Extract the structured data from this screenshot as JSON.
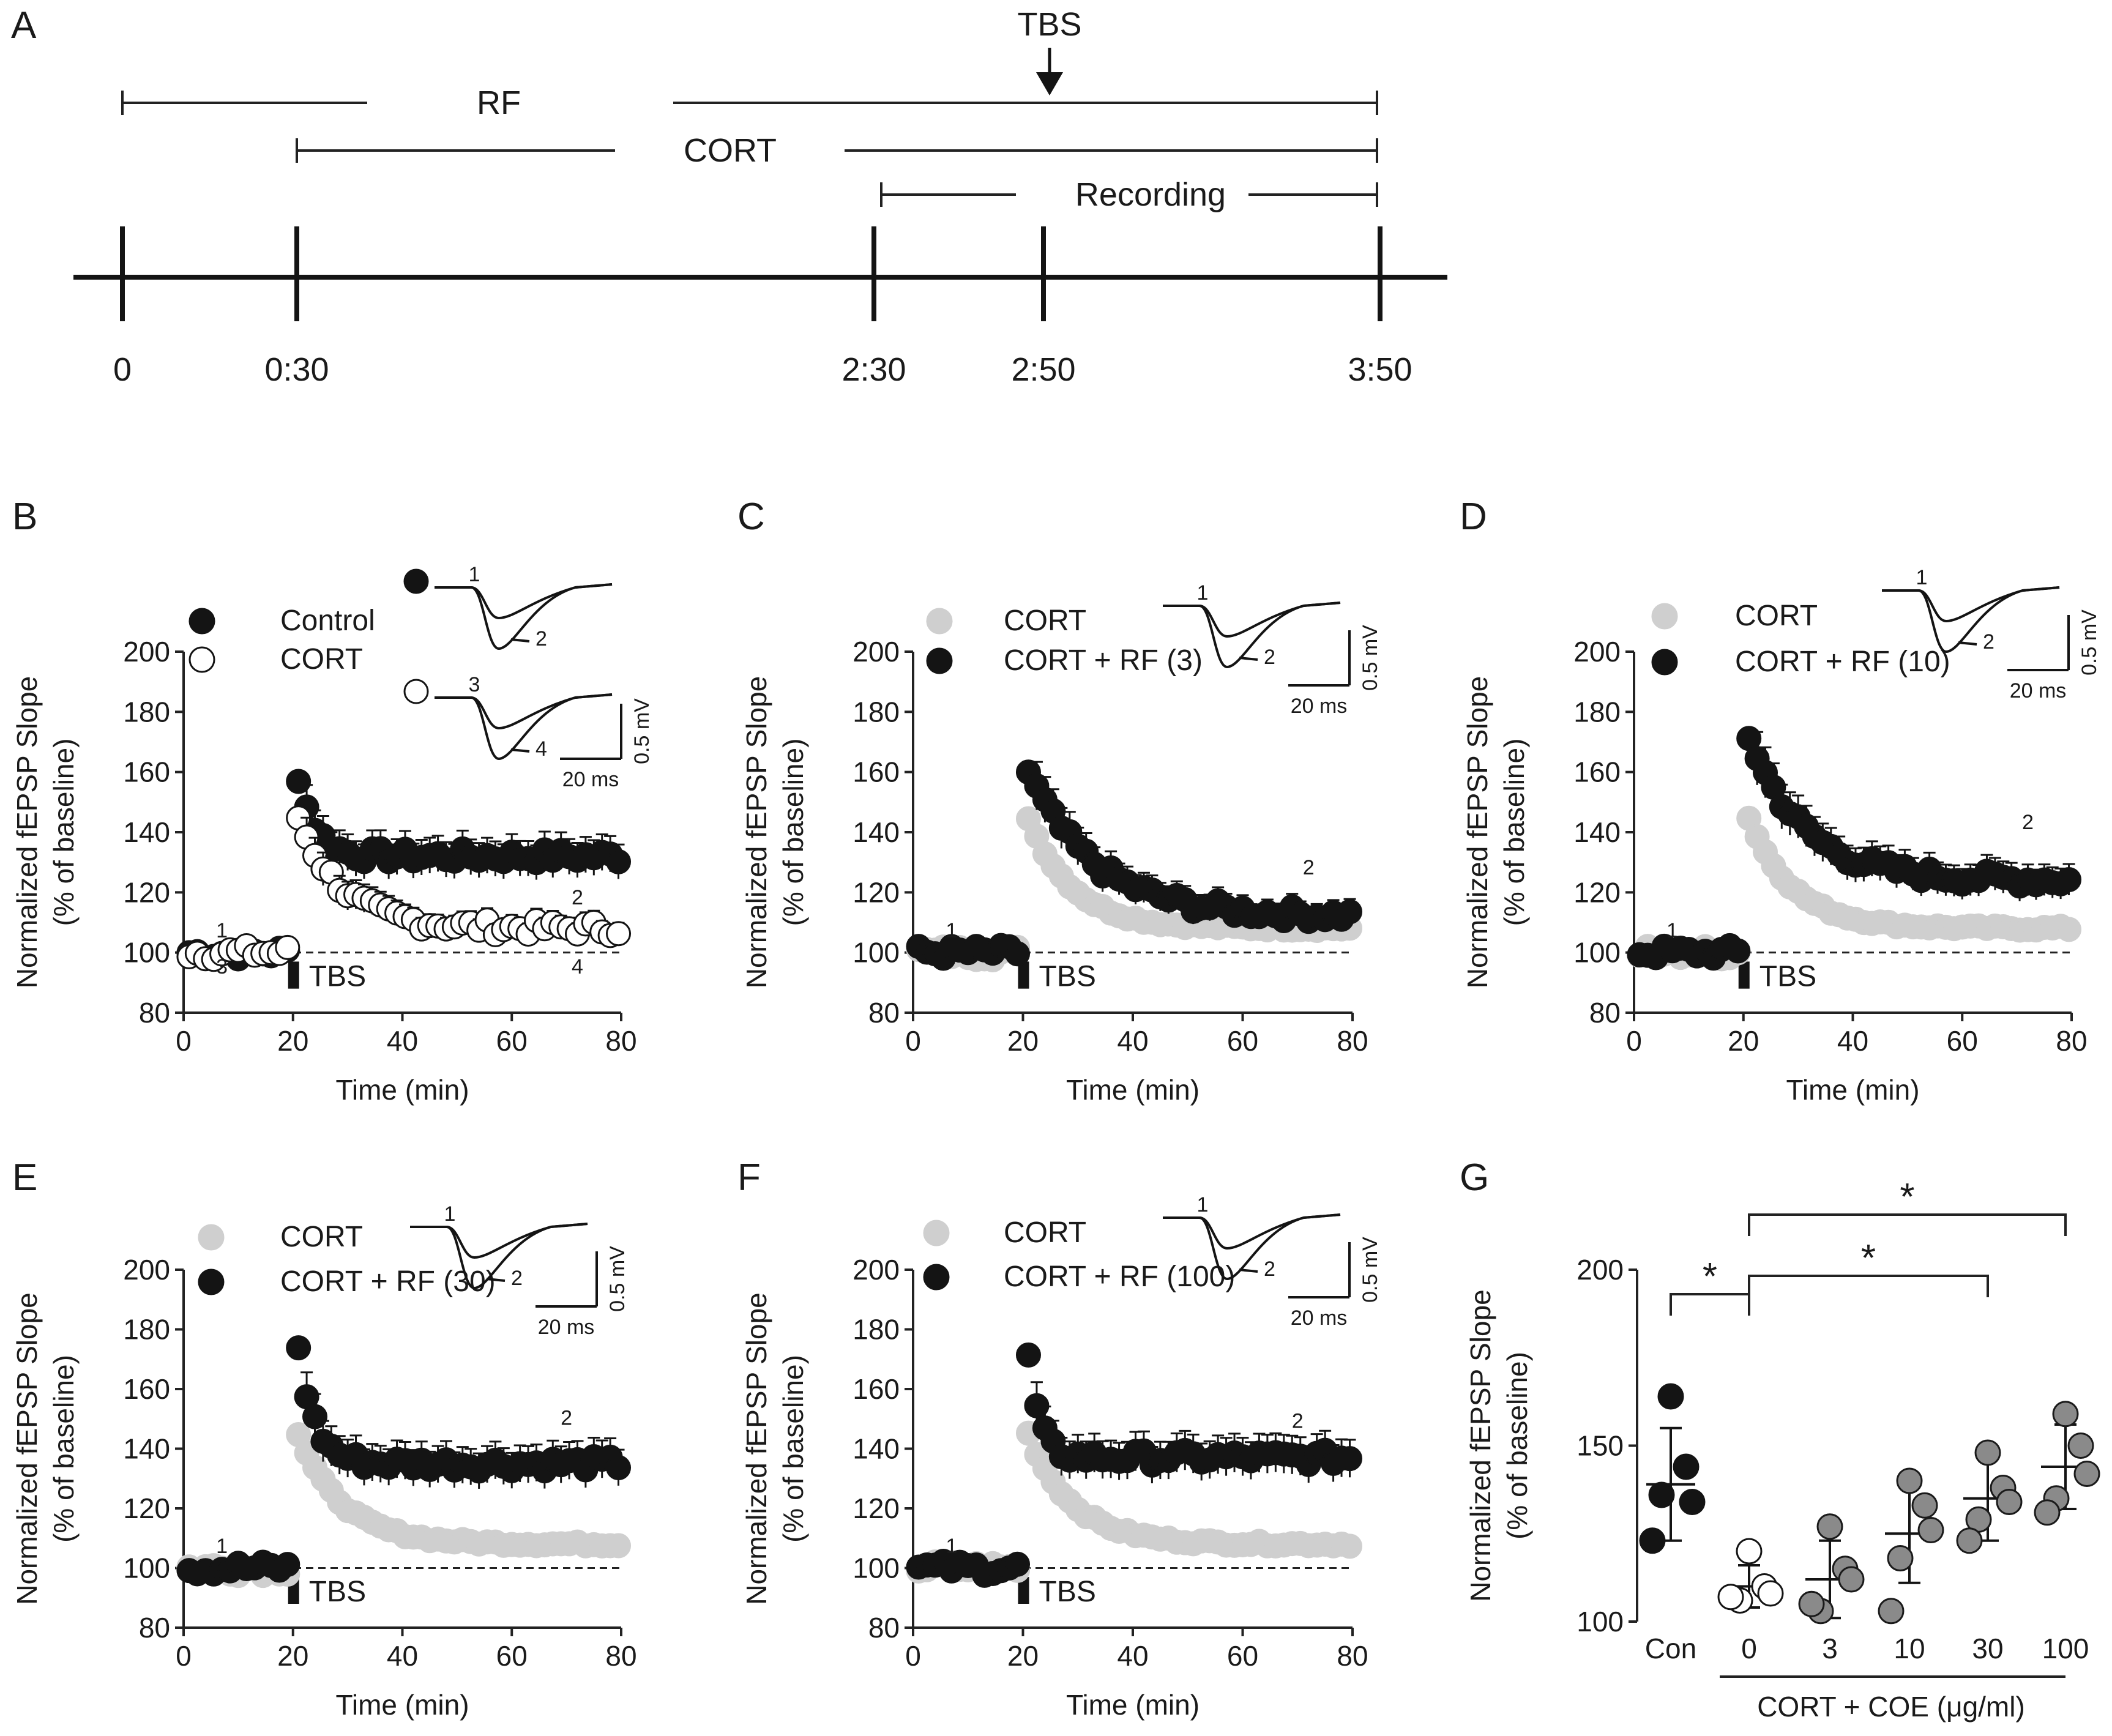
{
  "chart_data": [
    {
      "panel": "A",
      "type": "timeline",
      "time_labels": [
        "0",
        "0:30",
        "2:30",
        "2:50",
        "3:50"
      ],
      "bars": [
        {
          "label": "RF",
          "start": "0",
          "end": "3:50"
        },
        {
          "label": "CORT",
          "start": "0:30",
          "end": "3:50"
        },
        {
          "label": "Recording",
          "start": "2:30",
          "end": "3:50"
        }
      ],
      "event": {
        "label": "TBS",
        "time": "2:50"
      }
    },
    {
      "panel": "B",
      "type": "scatter",
      "xlabel": "Time (min)",
      "ylabel": [
        "Normalized fEPSP Slope",
        "(% of baseline)"
      ],
      "xlim": [
        0,
        80
      ],
      "ylim": [
        80,
        200
      ],
      "xticks": [
        "0",
        "20",
        "40",
        "60",
        "80"
      ],
      "yticks": [
        "80",
        "100",
        "120",
        "140",
        "160",
        "180",
        "200"
      ],
      "tbs_label": "TBS",
      "tbs_time": 20,
      "series": [
        {
          "name": "Control",
          "style": "black",
          "peak": 159,
          "plateau": 132,
          "tau": 3
        },
        {
          "name": "CORT",
          "style": "white",
          "peak": 145,
          "plateau": 108,
          "tau": 8
        }
      ],
      "point_labels": [
        {
          "text": "1",
          "x": 7,
          "y": 105
        },
        {
          "text": "3",
          "x": 7,
          "y": 93
        },
        {
          "text": "2",
          "x": 72,
          "y": 116
        },
        {
          "text": "4",
          "x": 72,
          "y": 93
        }
      ],
      "inset": {
        "trace_labels": [
          "1",
          "2",
          "3",
          "4"
        ],
        "scale_y": "0.5 mV",
        "scale_x": "20 ms"
      }
    },
    {
      "panel": "C",
      "type": "scatter",
      "xlabel": "Time (min)",
      "ylabel": [
        "Normalized fEPSP Slope",
        "(% of baseline)"
      ],
      "xlim": [
        0,
        80
      ],
      "ylim": [
        80,
        200
      ],
      "xticks": [
        "0",
        "20",
        "40",
        "60",
        "80"
      ],
      "yticks": [
        "80",
        "100",
        "120",
        "140",
        "160",
        "180",
        "200"
      ],
      "tbs_label": "TBS",
      "tbs_time": 20,
      "series": [
        {
          "name": "CORT",
          "style": "gray",
          "peak": 145,
          "plateau": 108,
          "tau": 8
        },
        {
          "name": "CORT + RF (3)",
          "style": "black",
          "peak": 160,
          "plateau": 112,
          "tau": 12
        }
      ],
      "point_labels": [
        {
          "text": "1",
          "x": 7,
          "y": 105
        },
        {
          "text": "2",
          "x": 72,
          "y": 126
        }
      ],
      "inset": {
        "trace_labels": [
          "1",
          "2"
        ],
        "scale_y": "0.5 mV",
        "scale_x": "20 ms"
      }
    },
    {
      "panel": "D",
      "type": "scatter",
      "xlabel": "Time (min)",
      "ylabel": [
        "Normalized fEPSP Slope",
        "(% of baseline)"
      ],
      "xlim": [
        0,
        80
      ],
      "ylim": [
        80,
        200
      ],
      "xticks": [
        "0",
        "20",
        "40",
        "60",
        "80"
      ],
      "yticks": [
        "80",
        "100",
        "120",
        "140",
        "160",
        "180",
        "200"
      ],
      "tbs_label": "TBS",
      "tbs_time": 20,
      "series": [
        {
          "name": "CORT",
          "style": "gray",
          "peak": 145,
          "plateau": 108,
          "tau": 8
        },
        {
          "name": "CORT + RF (10)",
          "style": "black",
          "peak": 172,
          "plateau": 124,
          "tau": 10
        }
      ],
      "point_labels": [
        {
          "text": "1",
          "x": 7,
          "y": 105
        },
        {
          "text": "2",
          "x": 72,
          "y": 141
        }
      ],
      "inset": {
        "trace_labels": [
          "1",
          "2"
        ],
        "scale_y": "0.5 mV",
        "scale_x": "20 ms"
      }
    },
    {
      "panel": "E",
      "type": "scatter",
      "xlabel": "Time (min)",
      "ylabel": [
        "Normalized fEPSP Slope",
        "(% of baseline)"
      ],
      "xlim": [
        0,
        80
      ],
      "ylim": [
        80,
        200
      ],
      "xticks": [
        "0",
        "20",
        "40",
        "60",
        "80"
      ],
      "yticks": [
        "80",
        "100",
        "120",
        "140",
        "160",
        "180",
        "200"
      ],
      "tbs_label": "TBS",
      "tbs_time": 20,
      "series": [
        {
          "name": "CORT",
          "style": "gray",
          "peak": 145,
          "plateau": 108,
          "tau": 8
        },
        {
          "name": "CORT + RF (30)",
          "style": "black",
          "peak": 174,
          "plateau": 135,
          "tau": 3
        }
      ],
      "point_labels": [
        {
          "text": "1",
          "x": 7,
          "y": 105
        },
        {
          "text": "2",
          "x": 70,
          "y": 148
        }
      ],
      "inset": {
        "trace_labels": [
          "1",
          "2"
        ],
        "scale_y": "0.5 mV",
        "scale_x": "20 ms"
      }
    },
    {
      "panel": "F",
      "type": "scatter",
      "xlabel": "Time (min)",
      "ylabel": [
        "Normalized fEPSP Slope",
        "(% of baseline)"
      ],
      "xlim": [
        0,
        80
      ],
      "ylim": [
        80,
        200
      ],
      "xticks": [
        "0",
        "20",
        "40",
        "60",
        "80"
      ],
      "yticks": [
        "80",
        "100",
        "120",
        "140",
        "160",
        "180",
        "200"
      ],
      "tbs_label": "TBS",
      "tbs_time": 20,
      "series": [
        {
          "name": "CORT",
          "style": "gray",
          "peak": 145,
          "plateau": 108,
          "tau": 8
        },
        {
          "name": "CORT + RF (100)",
          "style": "black",
          "peak": 171,
          "plateau": 137,
          "tau": 2
        }
      ],
      "point_labels": [
        {
          "text": "1",
          "x": 7,
          "y": 105
        },
        {
          "text": "2",
          "x": 70,
          "y": 147
        }
      ],
      "inset": {
        "trace_labels": [
          "1",
          "2"
        ],
        "scale_y": "0.5 mV",
        "scale_x": "20 ms"
      }
    },
    {
      "panel": "G",
      "type": "dot",
      "ylabel": [
        "Normalized fEPSP Slope",
        "(% of baseline)"
      ],
      "ylim": [
        100,
        200
      ],
      "yticks": [
        "100",
        "150",
        "200"
      ],
      "categories": [
        "Con",
        "0",
        "3",
        "10",
        "30",
        "100"
      ],
      "group_label": "CORT + COE (μg/ml)",
      "groups": [
        {
          "name": "Con",
          "style": "black",
          "mean": 139,
          "sd": 16,
          "values": [
            164,
            144,
            134,
            136,
            123
          ]
        },
        {
          "name": "0",
          "style": "white",
          "mean": 110,
          "sd": 6,
          "values": [
            120,
            110,
            108,
            106,
            107
          ]
        },
        {
          "name": "3",
          "style": "darkgray",
          "mean": 112,
          "sd": 11,
          "values": [
            127,
            115,
            112,
            103,
            105
          ]
        },
        {
          "name": "10",
          "style": "darkgray",
          "mean": 125,
          "sd": 14,
          "values": [
            140,
            133,
            126,
            118,
            103
          ]
        },
        {
          "name": "30",
          "style": "darkgray",
          "mean": 135,
          "sd": 12,
          "values": [
            148,
            138,
            134,
            129,
            123
          ]
        },
        {
          "name": "100",
          "style": "darkgray",
          "mean": 144,
          "sd": 12,
          "values": [
            159,
            150,
            142,
            135,
            131
          ]
        }
      ],
      "significance": [
        {
          "from": "Con",
          "to": "0",
          "label": "*"
        },
        {
          "from": "0",
          "to": "30",
          "label": "*"
        },
        {
          "from": "0",
          "to": "100",
          "label": "*"
        }
      ]
    }
  ]
}
